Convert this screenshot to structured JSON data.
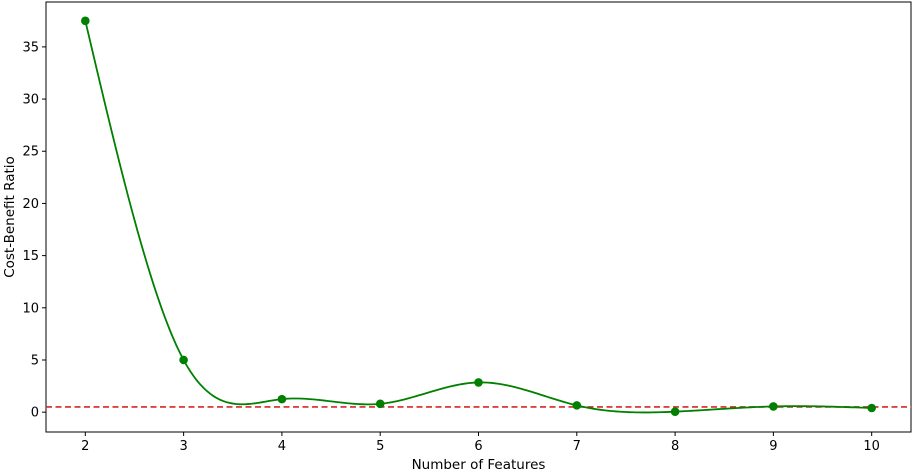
{
  "chart_data": {
    "type": "line",
    "title": "",
    "xlabel": "Number of Features",
    "ylabel": "Cost-Benefit Ratio",
    "x": [
      2,
      3,
      4,
      5,
      6,
      7,
      8,
      9,
      10
    ],
    "series": [
      {
        "values": [
          37.5,
          5.0,
          1.25,
          0.8,
          2.85,
          0.65,
          0.05,
          0.55,
          0.4
        ],
        "color": "#008000",
        "marker": "circle",
        "smoothed": true
      }
    ],
    "reference_line": {
      "y": 0.5,
      "color": "#d62728",
      "style": "dashed"
    },
    "xlim": [
      1.6,
      10.4
    ],
    "ylim": [
      -1.9,
      39.3
    ],
    "xticks": [
      "2",
      "3",
      "4",
      "5",
      "6",
      "7",
      "8",
      "9",
      "10"
    ],
    "yticks": [
      "0",
      "5",
      "10",
      "15",
      "20",
      "25",
      "30",
      "35"
    ],
    "grid": false,
    "legend": "none"
  }
}
